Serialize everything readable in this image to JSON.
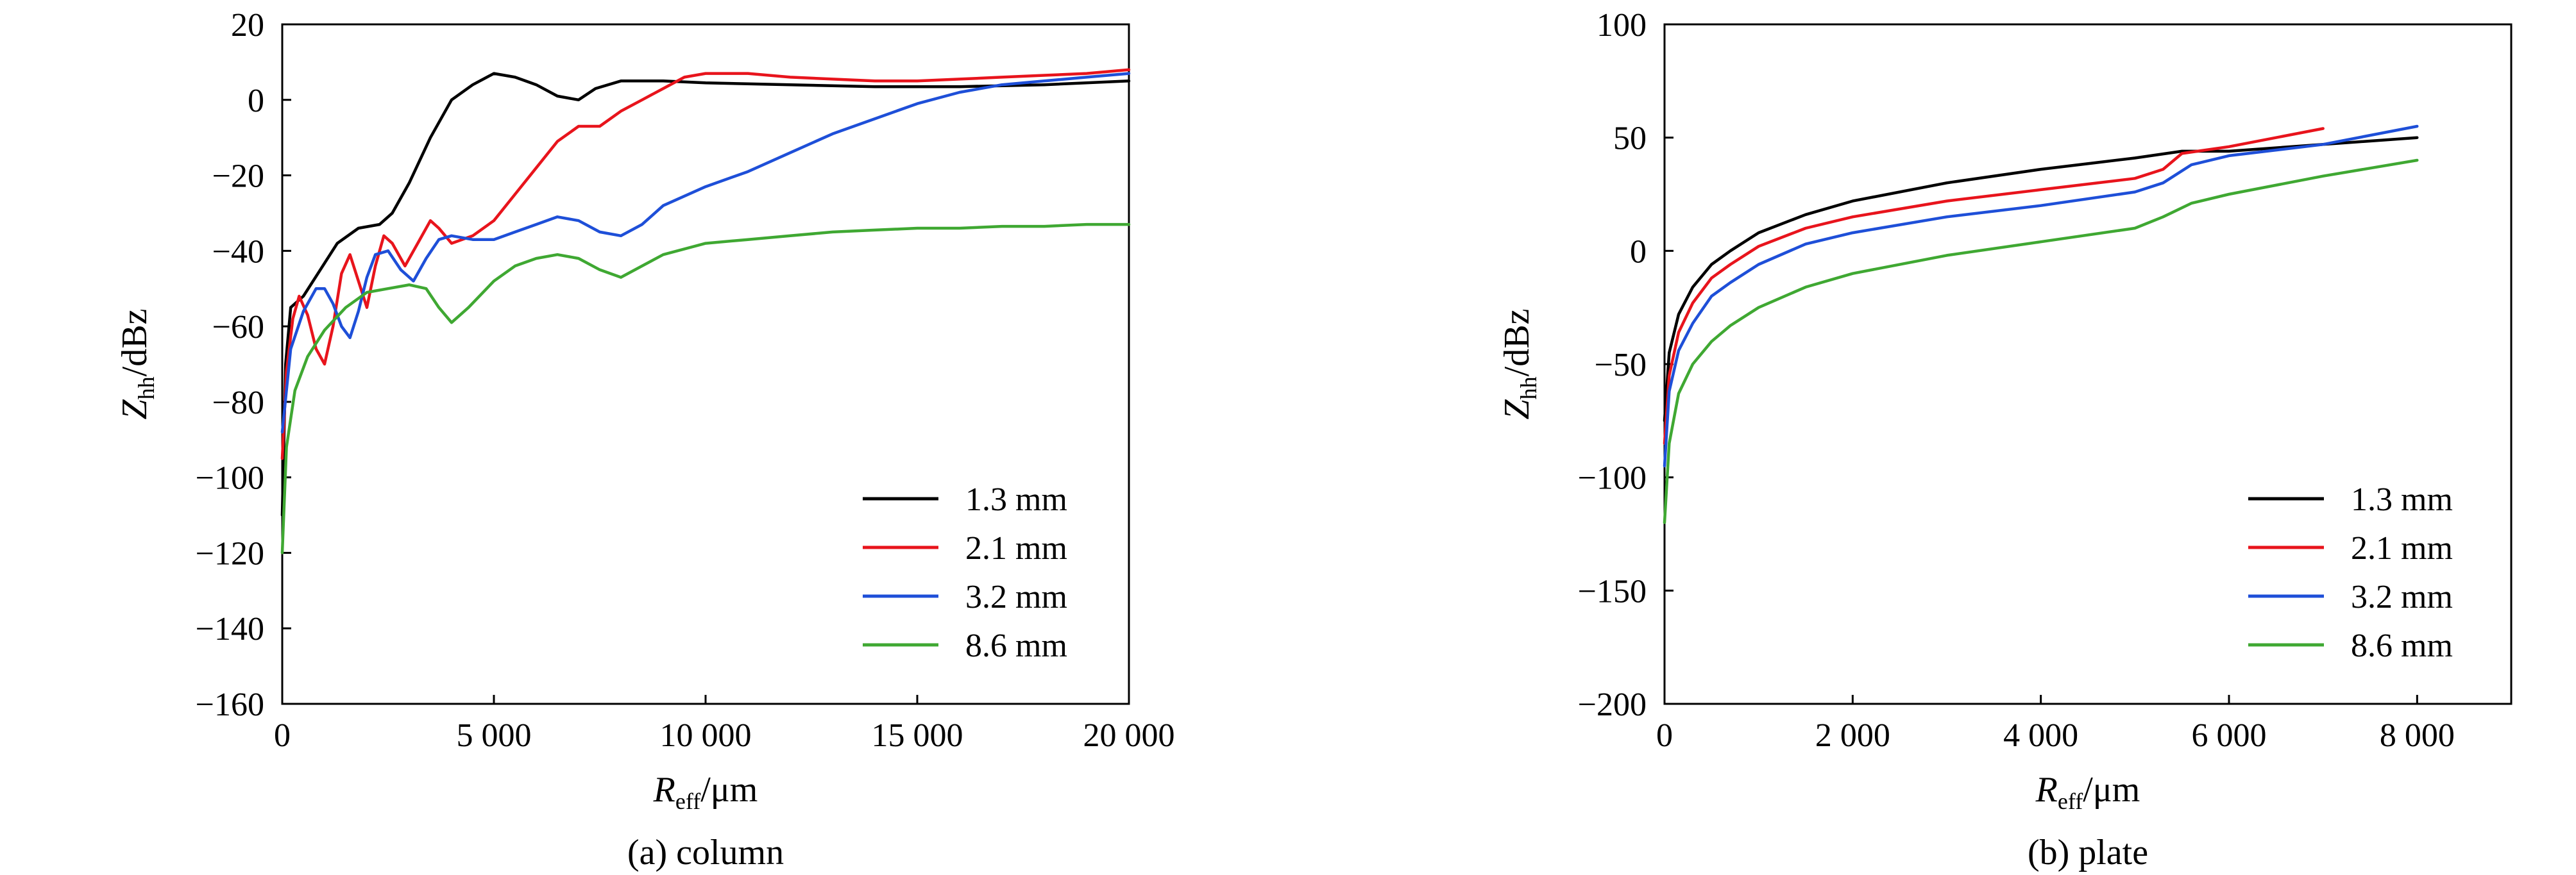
{
  "chart_data": [
    {
      "id": "a",
      "type": "line",
      "caption": "(a) column",
      "ylabel_main": "Z",
      "ylabel_sub": "hh",
      "ylabel_rest": "/dBz",
      "xlabel_main": "R",
      "xlabel_sub": "eff",
      "xlabel_rest": "/μm",
      "xlim": [
        0,
        20000
      ],
      "ylim": [
        -160,
        20
      ],
      "xticks": [
        0,
        5000,
        10000,
        15000,
        20000
      ],
      "xtick_labels": [
        "0",
        "5 000",
        "10 000",
        "15 000",
        "20 000"
      ],
      "yticks": [
        20,
        0,
        -20,
        -40,
        -60,
        -80,
        -100,
        -120,
        -140,
        -160
      ],
      "ytick_labels": [
        "20",
        "0",
        "−20",
        "−40",
        "−60",
        "−80",
        "−100",
        "−120",
        "−140",
        "−160"
      ],
      "legend_position": "bottom-right",
      "series": [
        {
          "name": "1.3 mm",
          "color": "#000000",
          "points": [
            [
              0,
              -110
            ],
            [
              80,
              -70
            ],
            [
              200,
              -55
            ],
            [
              500,
              -52
            ],
            [
              900,
              -45
            ],
            [
              1300,
              -38
            ],
            [
              1800,
              -34
            ],
            [
              2300,
              -33
            ],
            [
              2600,
              -30
            ],
            [
              3000,
              -22
            ],
            [
              3500,
              -10
            ],
            [
              4000,
              0
            ],
            [
              4500,
              4
            ],
            [
              5000,
              7
            ],
            [
              5500,
              6
            ],
            [
              6000,
              4
            ],
            [
              6500,
              1
            ],
            [
              7000,
              0
            ],
            [
              7400,
              3
            ],
            [
              8000,
              5
            ],
            [
              9000,
              5
            ],
            [
              10000,
              4.5
            ],
            [
              12000,
              4
            ],
            [
              14000,
              3.5
            ],
            [
              16000,
              3.5
            ],
            [
              18000,
              4
            ],
            [
              20000,
              5
            ]
          ]
        },
        {
          "name": "2.1 mm",
          "color": "#e8141c",
          "points": [
            [
              0,
              -95
            ],
            [
              100,
              -72
            ],
            [
              250,
              -58
            ],
            [
              400,
              -52
            ],
            [
              600,
              -57
            ],
            [
              800,
              -66
            ],
            [
              1000,
              -70
            ],
            [
              1200,
              -60
            ],
            [
              1400,
              -46
            ],
            [
              1600,
              -41
            ],
            [
              1800,
              -48
            ],
            [
              2000,
              -55
            ],
            [
              2200,
              -44
            ],
            [
              2400,
              -36
            ],
            [
              2600,
              -38
            ],
            [
              2900,
              -44
            ],
            [
              3200,
              -38
            ],
            [
              3500,
              -32
            ],
            [
              3700,
              -34
            ],
            [
              4000,
              -38
            ],
            [
              4500,
              -36
            ],
            [
              5000,
              -32
            ],
            [
              5500,
              -25
            ],
            [
              6000,
              -18
            ],
            [
              6500,
              -11
            ],
            [
              7000,
              -7
            ],
            [
              7500,
              -7
            ],
            [
              8000,
              -3
            ],
            [
              8500,
              0
            ],
            [
              9000,
              3
            ],
            [
              9500,
              6
            ],
            [
              10000,
              7
            ],
            [
              11000,
              7
            ],
            [
              12000,
              6
            ],
            [
              13000,
              5.5
            ],
            [
              14000,
              5
            ],
            [
              15000,
              5
            ],
            [
              16000,
              5.5
            ],
            [
              17000,
              6
            ],
            [
              18000,
              6.5
            ],
            [
              19000,
              7
            ],
            [
              20000,
              8
            ]
          ]
        },
        {
          "name": "3.2 mm",
          "color": "#1e4fd8",
          "points": [
            [
              0,
              -88
            ],
            [
              200,
              -66
            ],
            [
              500,
              -56
            ],
            [
              800,
              -50
            ],
            [
              1000,
              -50
            ],
            [
              1200,
              -54
            ],
            [
              1400,
              -60
            ],
            [
              1600,
              -63
            ],
            [
              1800,
              -56
            ],
            [
              2000,
              -47
            ],
            [
              2200,
              -41
            ],
            [
              2500,
              -40
            ],
            [
              2800,
              -45
            ],
            [
              3100,
              -48
            ],
            [
              3400,
              -42
            ],
            [
              3700,
              -37
            ],
            [
              4000,
              -36
            ],
            [
              4500,
              -37
            ],
            [
              5000,
              -37
            ],
            [
              5500,
              -35
            ],
            [
              6000,
              -33
            ],
            [
              6500,
              -31
            ],
            [
              7000,
              -32
            ],
            [
              7500,
              -35
            ],
            [
              8000,
              -36
            ],
            [
              8500,
              -33
            ],
            [
              9000,
              -28
            ],
            [
              10000,
              -23
            ],
            [
              11000,
              -19
            ],
            [
              12000,
              -14
            ],
            [
              13000,
              -9
            ],
            [
              14000,
              -5
            ],
            [
              15000,
              -1
            ],
            [
              16000,
              2
            ],
            [
              17000,
              4
            ],
            [
              18000,
              5
            ],
            [
              19000,
              6
            ],
            [
              20000,
              7
            ]
          ]
        },
        {
          "name": "8.6 mm",
          "color": "#3fa832",
          "points": [
            [
              0,
              -120
            ],
            [
              100,
              -92
            ],
            [
              300,
              -77
            ],
            [
              600,
              -68
            ],
            [
              1000,
              -61
            ],
            [
              1500,
              -55
            ],
            [
              2000,
              -51
            ],
            [
              2500,
              -50
            ],
            [
              3000,
              -49
            ],
            [
              3400,
              -50
            ],
            [
              3700,
              -55
            ],
            [
              4000,
              -59
            ],
            [
              4400,
              -55
            ],
            [
              5000,
              -48
            ],
            [
              5500,
              -44
            ],
            [
              6000,
              -42
            ],
            [
              6500,
              -41
            ],
            [
              7000,
              -42
            ],
            [
              7500,
              -45
            ],
            [
              8000,
              -47
            ],
            [
              8500,
              -44
            ],
            [
              9000,
              -41
            ],
            [
              10000,
              -38
            ],
            [
              11000,
              -37
            ],
            [
              12000,
              -36
            ],
            [
              13000,
              -35
            ],
            [
              14000,
              -34.5
            ],
            [
              15000,
              -34
            ],
            [
              16000,
              -34
            ],
            [
              17000,
              -33.5
            ],
            [
              18000,
              -33.5
            ],
            [
              19000,
              -33
            ],
            [
              20000,
              -33
            ]
          ]
        }
      ]
    },
    {
      "id": "b",
      "type": "line",
      "caption": "(b) plate",
      "ylabel_main": "Z",
      "ylabel_sub": "hh",
      "ylabel_rest": "/dBz",
      "xlabel_main": "R",
      "xlabel_sub": "eff",
      "xlabel_rest": "/μm",
      "xlim": [
        0,
        9000
      ],
      "ylim": [
        -200,
        100
      ],
      "xticks": [
        0,
        2000,
        4000,
        6000,
        8000
      ],
      "xtick_labels": [
        "0",
        "2 000",
        "4 000",
        "6 000",
        "8 000"
      ],
      "yticks": [
        100,
        50,
        0,
        -50,
        -100,
        -150,
        -200
      ],
      "ytick_labels": [
        "100",
        "50",
        "0",
        "−50",
        "−100",
        "−150",
        "−200"
      ],
      "legend_position": "bottom-right",
      "series": [
        {
          "name": "1.3 mm",
          "color": "#000000",
          "points": [
            [
              0,
              -75
            ],
            [
              50,
              -45
            ],
            [
              150,
              -28
            ],
            [
              300,
              -16
            ],
            [
              500,
              -6
            ],
            [
              700,
              0
            ],
            [
              1000,
              8
            ],
            [
              1500,
              16
            ],
            [
              2000,
              22
            ],
            [
              3000,
              30
            ],
            [
              4000,
              36
            ],
            [
              5000,
              41
            ],
            [
              5500,
              44
            ],
            [
              6000,
              44
            ],
            [
              7000,
              47
            ],
            [
              8000,
              50
            ]
          ]
        },
        {
          "name": "2.1 mm",
          "color": "#e8141c",
          "points": [
            [
              0,
              -85
            ],
            [
              50,
              -55
            ],
            [
              150,
              -36
            ],
            [
              300,
              -23
            ],
            [
              500,
              -12
            ],
            [
              700,
              -6
            ],
            [
              1000,
              2
            ],
            [
              1500,
              10
            ],
            [
              2000,
              15
            ],
            [
              3000,
              22
            ],
            [
              4000,
              27
            ],
            [
              5000,
              32
            ],
            [
              5300,
              36
            ],
            [
              5500,
              43
            ],
            [
              6000,
              46
            ],
            [
              7000,
              54
            ]
          ]
        },
        {
          "name": "3.2 mm",
          "color": "#1e4fd8",
          "points": [
            [
              0,
              -95
            ],
            [
              50,
              -62
            ],
            [
              150,
              -44
            ],
            [
              300,
              -32
            ],
            [
              500,
              -20
            ],
            [
              700,
              -14
            ],
            [
              1000,
              -6
            ],
            [
              1500,
              3
            ],
            [
              2000,
              8
            ],
            [
              3000,
              15
            ],
            [
              4000,
              20
            ],
            [
              5000,
              26
            ],
            [
              5300,
              30
            ],
            [
              5600,
              38
            ],
            [
              6000,
              42
            ],
            [
              7000,
              47
            ],
            [
              8000,
              55
            ]
          ]
        },
        {
          "name": "8.6 mm",
          "color": "#3fa832",
          "points": [
            [
              0,
              -120
            ],
            [
              50,
              -85
            ],
            [
              150,
              -63
            ],
            [
              300,
              -50
            ],
            [
              500,
              -40
            ],
            [
              700,
              -33
            ],
            [
              1000,
              -25
            ],
            [
              1500,
              -16
            ],
            [
              2000,
              -10
            ],
            [
              3000,
              -2
            ],
            [
              4000,
              4
            ],
            [
              5000,
              10
            ],
            [
              5300,
              15
            ],
            [
              5600,
              21
            ],
            [
              6000,
              25
            ],
            [
              7000,
              33
            ],
            [
              8000,
              40
            ]
          ]
        }
      ]
    }
  ]
}
